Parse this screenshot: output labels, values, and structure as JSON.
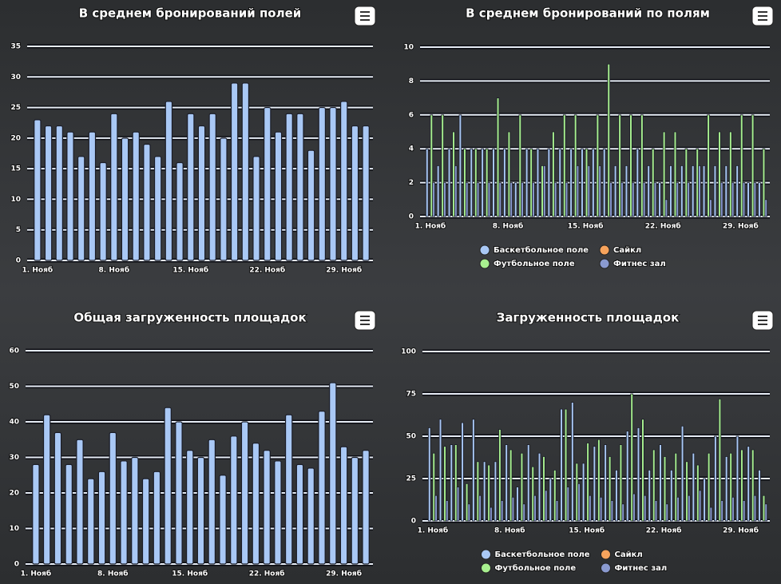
{
  "chart_data": [
    {
      "type": "bar",
      "title": "В среднем бронирований полей",
      "categories": [
        "1. Нояб",
        null,
        null,
        null,
        null,
        null,
        null,
        "8. Нояб",
        null,
        null,
        null,
        null,
        null,
        null,
        "15. Нояб",
        null,
        null,
        null,
        null,
        null,
        null,
        "22. Нояб",
        null,
        null,
        null,
        null,
        null,
        null,
        "29. Нояб",
        null,
        null
      ],
      "values": [
        23,
        22,
        22,
        21,
        17,
        21,
        16,
        24,
        20,
        21,
        19,
        17,
        26,
        16,
        24,
        22,
        24,
        20,
        29,
        29,
        17,
        25,
        21,
        24,
        24,
        18,
        25,
        25,
        26,
        22,
        22
      ],
      "color": "#a9c8f5",
      "ylim": [
        0,
        35
      ],
      "yticks": [
        0,
        5,
        10,
        15,
        20,
        25,
        30,
        35
      ],
      "grid": true
    },
    {
      "type": "bar",
      "title": "В среднем бронирований по полям",
      "categories": [
        "1. Нояб",
        null,
        null,
        null,
        null,
        null,
        null,
        "8. Нояб",
        null,
        null,
        null,
        null,
        null,
        null,
        "15. Нояб",
        null,
        null,
        null,
        null,
        null,
        null,
        "22. Нояб",
        null,
        null,
        null,
        null,
        null,
        null,
        "29. Нояб",
        null,
        null
      ],
      "series": [
        {
          "name": "Баскетбольное поле",
          "color": "#a9c8f5",
          "values": [
            4,
            3,
            4,
            6,
            4,
            4,
            4,
            4,
            2,
            4,
            4,
            4,
            4,
            4,
            4,
            4,
            4,
            3,
            3,
            4,
            3,
            2,
            3,
            3,
            3,
            3,
            3,
            3,
            3,
            2,
            2
          ]
        },
        {
          "name": "Сайкл",
          "color": "#f7a35c",
          "values": [
            0,
            0,
            0,
            0,
            0,
            0,
            0,
            0,
            0,
            0,
            0,
            0,
            0,
            0,
            0,
            0,
            0,
            0,
            0,
            0,
            0,
            0,
            0,
            0,
            0,
            0,
            0,
            0,
            0,
            0,
            0
          ]
        },
        {
          "name": "Футбольное поле",
          "color": "#a8f08f",
          "values": [
            6,
            6,
            5,
            4,
            4,
            4,
            7,
            5,
            6,
            4,
            3,
            5,
            6,
            6,
            4,
            6,
            9,
            6,
            6,
            6,
            4,
            5,
            5,
            4,
            4,
            6,
            5,
            5,
            6,
            6,
            4
          ]
        },
        {
          "name": "Фитнес зал",
          "color": "#8a9ad0",
          "values": [
            2,
            2,
            3,
            2,
            2,
            2,
            2,
            2,
            2,
            2,
            3,
            2,
            2,
            3,
            3,
            3,
            2,
            2,
            2,
            2,
            2,
            1,
            2,
            2,
            3,
            1,
            2,
            2,
            2,
            2,
            1
          ]
        }
      ],
      "ylim": [
        0,
        10
      ],
      "yticks": [
        0,
        2,
        4,
        6,
        8,
        10
      ],
      "grid": true
    },
    {
      "type": "bar",
      "title": "Общая загруженность площадок",
      "categories": [
        "1. Нояб",
        null,
        null,
        null,
        null,
        null,
        null,
        "8. Нояб",
        null,
        null,
        null,
        null,
        null,
        null,
        "15. Нояб",
        null,
        null,
        null,
        null,
        null,
        null,
        "22. Нояб",
        null,
        null,
        null,
        null,
        null,
        null,
        "29. Нояб",
        null,
        null
      ],
      "values": [
        28,
        42,
        37,
        28,
        35,
        24,
        26,
        37,
        29,
        30,
        24,
        26,
        44,
        40,
        32,
        30,
        35,
        25,
        36,
        40,
        34,
        32,
        29,
        42,
        28,
        27,
        43,
        51,
        33,
        30,
        32
      ],
      "color": "#a9c8f5",
      "ylim": [
        0,
        60
      ],
      "yticks": [
        0,
        10,
        20,
        30,
        40,
        50,
        60
      ],
      "grid": true
    },
    {
      "type": "bar",
      "title": "Загруженность площадок",
      "categories": [
        "1. Нояб",
        null,
        null,
        null,
        null,
        null,
        null,
        "8. Нояб",
        null,
        null,
        null,
        null,
        null,
        null,
        "15. Нояб",
        null,
        null,
        null,
        null,
        null,
        null,
        "22. Нояб",
        null,
        null,
        null,
        null,
        null,
        null,
        "29. Нояб",
        null,
        null
      ],
      "series": [
        {
          "name": "Баскетбольное поле",
          "color": "#a9c8f5",
          "values": [
            55,
            60,
            45,
            58,
            60,
            35,
            35,
            45,
            20,
            45,
            40,
            25,
            66,
            70,
            34,
            44,
            45,
            30,
            53,
            55,
            30,
            45,
            30,
            56,
            40,
            25,
            50,
            38,
            50,
            44,
            30
          ]
        },
        {
          "name": "Сайкл",
          "color": "#f7a35c",
          "values": [
            0,
            0,
            0,
            0,
            0,
            0,
            0,
            0,
            0,
            0,
            0,
            0,
            0,
            0,
            0,
            0,
            0,
            0,
            0,
            0,
            0,
            0,
            0,
            0,
            0,
            0,
            0,
            0,
            0,
            0,
            0
          ]
        },
        {
          "name": "Футбольное поле",
          "color": "#a8f08f",
          "values": [
            40,
            44,
            45,
            22,
            35,
            33,
            54,
            42,
            40,
            32,
            38,
            30,
            66,
            34,
            46,
            48,
            38,
            45,
            75,
            60,
            42,
            38,
            40,
            35,
            33,
            40,
            72,
            40,
            42,
            42,
            15
          ]
        },
        {
          "name": "Фитнес зал",
          "color": "#8a9ad0",
          "values": [
            15,
            12,
            20,
            10,
            15,
            8,
            12,
            14,
            10,
            15,
            18,
            12,
            20,
            22,
            15,
            14,
            12,
            10,
            16,
            15,
            12,
            10,
            14,
            15,
            18,
            8,
            12,
            14,
            12,
            15,
            10
          ]
        }
      ],
      "ylim": [
        0,
        100
      ],
      "yticks": [
        0,
        25,
        50,
        75,
        100
      ],
      "grid": true
    }
  ]
}
